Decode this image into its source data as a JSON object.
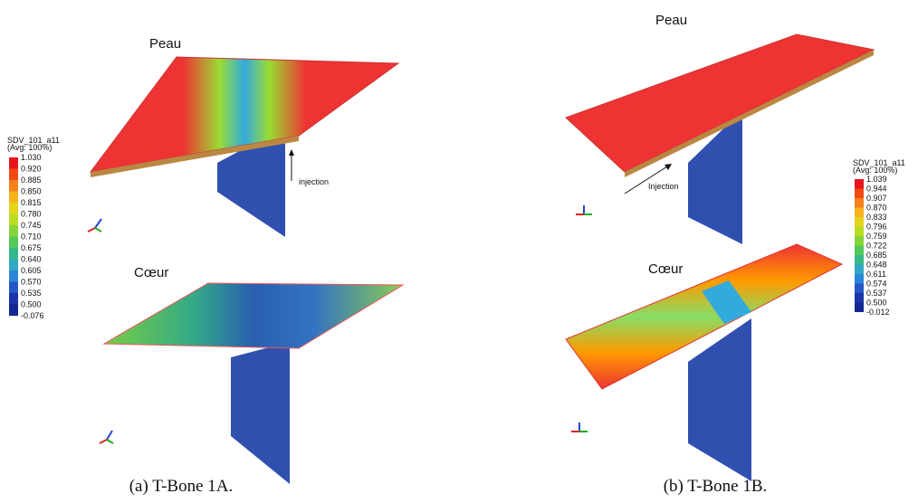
{
  "panels": [
    {
      "caption": "(a) T-Bone 1A.",
      "top_label": "Peau",
      "bottom_label": "Cœur",
      "arrow_label": "injection",
      "legend": {
        "title": "SDV_101_a11",
        "subtitle": "(Avg: 100%)",
        "values": [
          "1.030",
          "0.920",
          "0.885",
          "0.850",
          "0.815",
          "0.780",
          "0.745",
          "0.710",
          "0.675",
          "0.640",
          "0.605",
          "0.570",
          "0.535",
          "0.500",
          "-0.076"
        ]
      }
    },
    {
      "caption": "(b) T-Bone 1B.",
      "top_label": "Peau",
      "bottom_label": "Cœur",
      "arrow_label": "Injection",
      "legend": {
        "title": "SDV_101_a11",
        "subtitle": "(Avg: 100%)",
        "values": [
          "1.039",
          "0.944",
          "0.907",
          "0.870",
          "0.833",
          "0.796",
          "0.759",
          "0.722",
          "0.685",
          "0.648",
          "0.611",
          "0.574",
          "0.537",
          "0.500",
          "-0.012"
        ]
      }
    }
  ]
}
